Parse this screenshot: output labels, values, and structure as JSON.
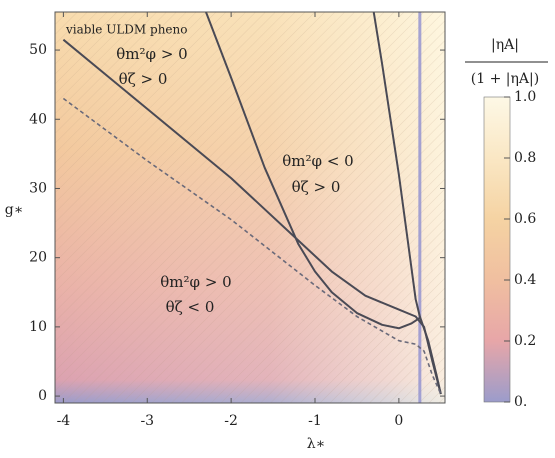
{
  "chart_data": {
    "type": "line",
    "xlabel": "λ∗",
    "ylabel": "g∗",
    "xlim": [
      -4.1,
      0.55
    ],
    "ylim": [
      -1,
      55.5
    ],
    "xticks": [
      -4,
      -3,
      -2,
      -1,
      0
    ],
    "yticks": [
      0,
      10,
      20,
      30,
      40,
      50
    ],
    "vline_x": 0.25,
    "vline_color": "#8f8fd0",
    "series": [
      {
        "color": "#4a4a55",
        "dash": false,
        "x": [
          -4,
          -3,
          -2,
          -1.2,
          -0.8,
          -0.4,
          0,
          0.2,
          0.3,
          0.4,
          0.5
        ],
        "values": [
          51.5,
          41.5,
          31.5,
          22.5,
          18,
          14.5,
          12.5,
          11.5,
          10,
          5,
          0.3
        ]
      },
      {
        "color": "#4a4a55",
        "dash": false,
        "x": [
          -2.3,
          -2,
          -1.6,
          -1.2,
          -1,
          -0.8,
          -0.5,
          -0.2,
          0,
          0.15,
          0.25
        ],
        "values": [
          55.5,
          46,
          33,
          22,
          18,
          15,
          12,
          10.3,
          9.8,
          10.5,
          11.3
        ]
      },
      {
        "color": "#4a4a55",
        "dash": false,
        "x": [
          -0.3,
          -0.2,
          -0.1,
          0,
          0.1,
          0.2,
          0.25,
          0.35,
          0.45,
          0.5
        ],
        "values": [
          55.5,
          48,
          40,
          32,
          23,
          14,
          11.5,
          8,
          3,
          0.3
        ]
      },
      {
        "color": "#6a6a7a",
        "dash": true,
        "x": [
          -4,
          -3,
          -2,
          -1,
          -0.5,
          0,
          0.2,
          0.3,
          0.4,
          0.5
        ],
        "values": [
          43,
          34,
          25.5,
          16,
          11.5,
          8,
          7.5,
          6.5,
          3,
          0.3
        ]
      }
    ],
    "annotations": [
      "viable ULDM pheno",
      "θm²φ > 0",
      "θζ > 0",
      "θm²φ < 0",
      "θζ > 0",
      "θm²φ > 0",
      "θζ < 0"
    ],
    "colorbar": {
      "title_numerator": "|ηA|",
      "title_denominator": "(1 + |ηA|)",
      "lim": [
        0,
        1
      ],
      "ticks": [
        {
          "value": 0,
          "label": "0."
        },
        0.2,
        0.4,
        0.6,
        0.8,
        {
          "value": 1,
          "label": "1.0"
        }
      ],
      "colors": [
        "#9b9ccb",
        "#e7a6a8",
        "#f0bfa0",
        "#f5d3a3",
        "#fae7c4",
        "#fdf8e6"
      ]
    }
  }
}
